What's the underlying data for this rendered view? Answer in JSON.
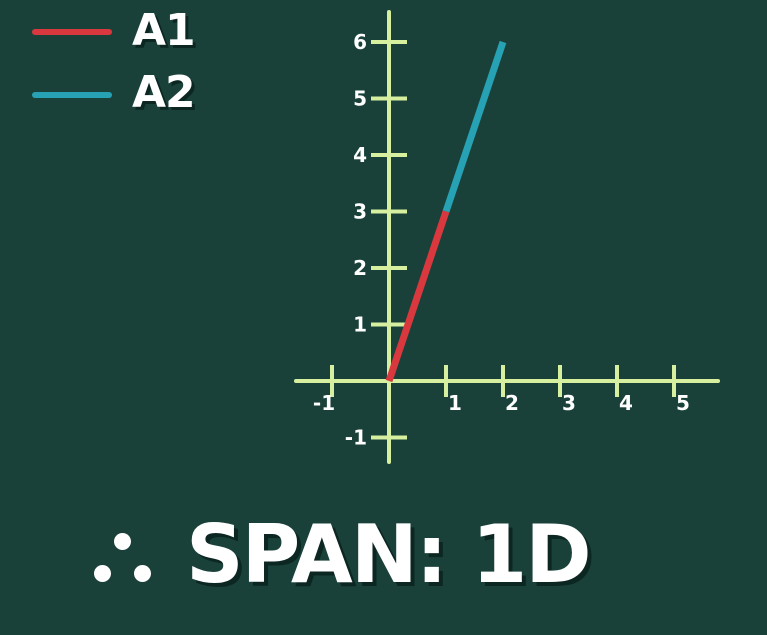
{
  "colors": {
    "background": "#19413A",
    "axis": "#D6F0A0",
    "a1": "#D9393E",
    "a2": "#26A2B4",
    "text": "#FFFFFF"
  },
  "legend": {
    "items": [
      {
        "label": "A1",
        "color": "#D9393E"
      },
      {
        "label": "A2",
        "color": "#26A2B4"
      }
    ]
  },
  "chart_data": {
    "type": "line",
    "x_ticks": [
      -1,
      1,
      2,
      3,
      4,
      5
    ],
    "y_ticks": [
      -1,
      1,
      2,
      3,
      4,
      5,
      6
    ],
    "xlim": [
      -1.6,
      5.7
    ],
    "ylim": [
      -1.4,
      6.5
    ],
    "series": [
      {
        "name": "A1",
        "points": [
          [
            0,
            0
          ],
          [
            1,
            3
          ]
        ]
      },
      {
        "name": "A2",
        "points": [
          [
            1,
            3
          ],
          [
            2,
            6
          ]
        ]
      }
    ]
  },
  "footer": {
    "symbol": "therefore-icon",
    "text": "SPAN: 1D"
  }
}
